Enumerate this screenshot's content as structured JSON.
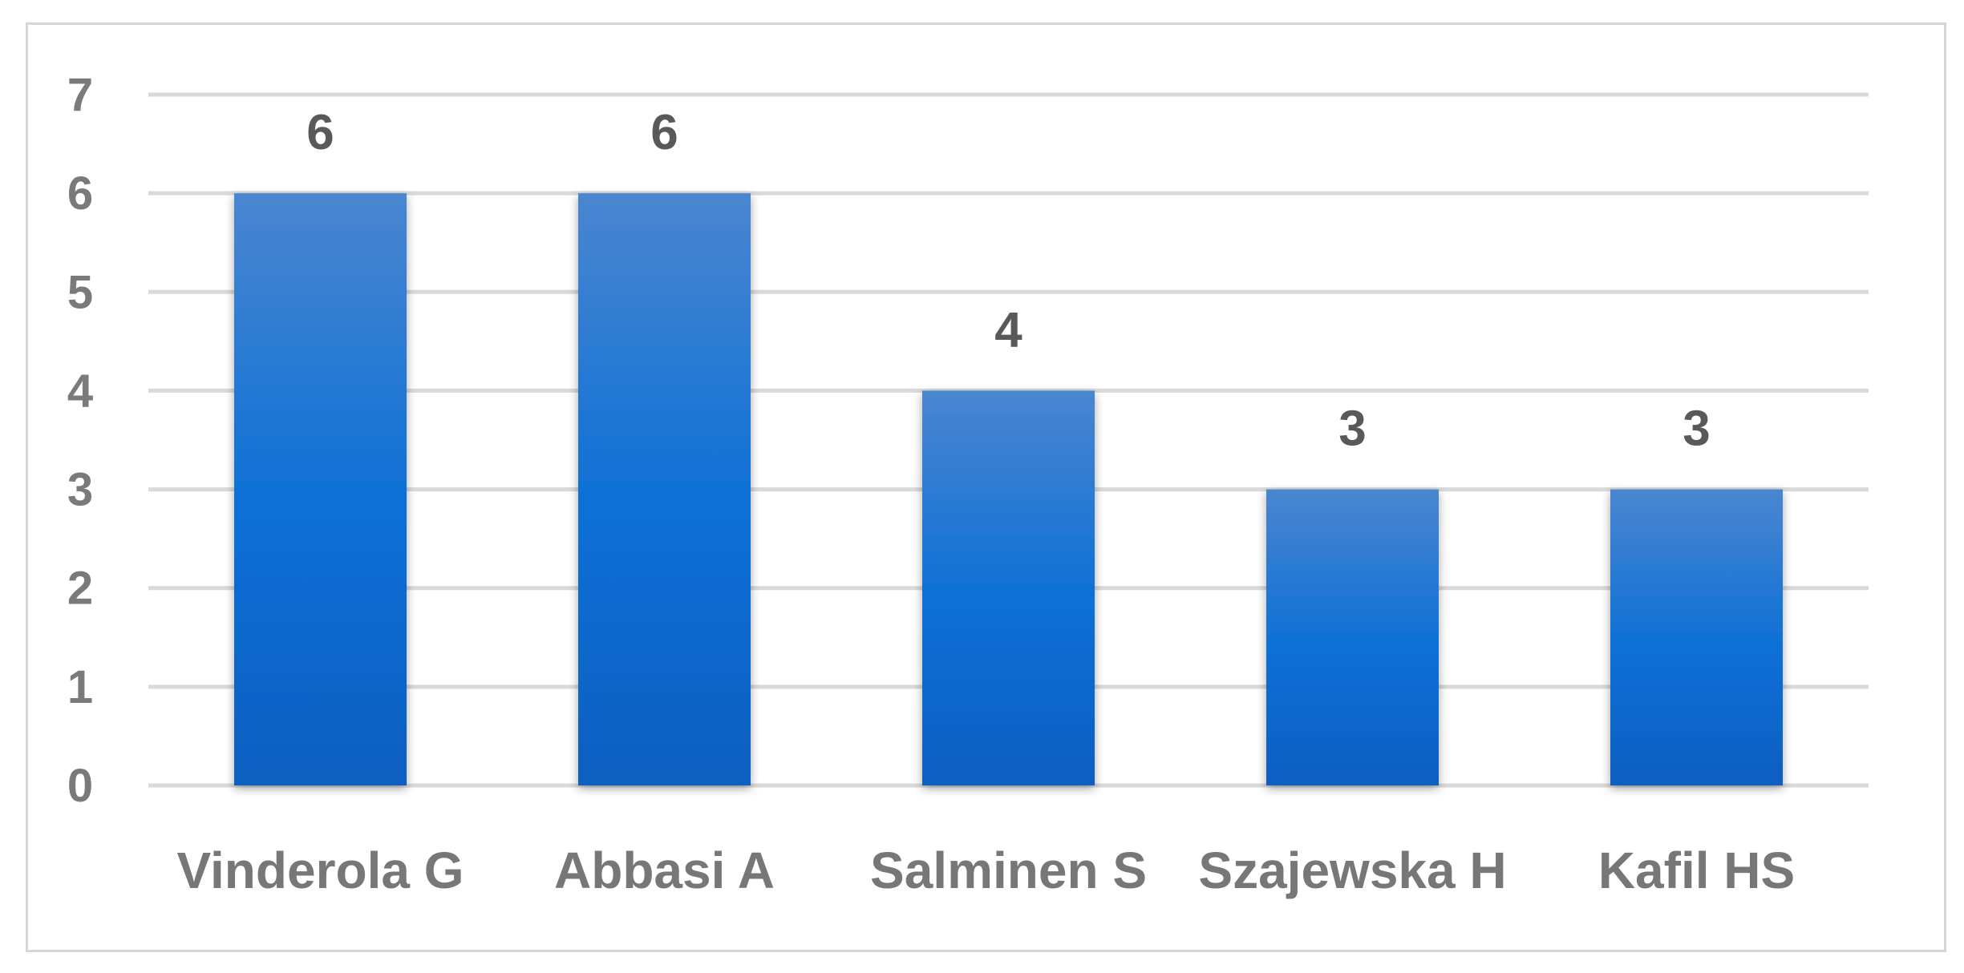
{
  "chart_data": {
    "type": "bar",
    "title": "",
    "xlabel": "",
    "ylabel": "",
    "categories": [
      "Vinderola G",
      "Abbasi A",
      "Salminen S",
      "Szajewska H",
      "Kafil HS"
    ],
    "values": [
      6,
      6,
      4,
      3,
      3
    ],
    "ylim": [
      0,
      7
    ],
    "yticks": [
      "0",
      "1",
      "2",
      "3",
      "4",
      "5",
      "6",
      "7"
    ],
    "data_labels": [
      "6",
      "6",
      "4",
      "3",
      "3"
    ],
    "grid": true,
    "legend": "none",
    "colors": {
      "bar_top": "#4a86d0",
      "bar_mid": "#0a6fd6",
      "bar_bottom": "#0a5fc0",
      "gridline": "#d9d9d9",
      "frame": "#d6d6d6"
    }
  }
}
